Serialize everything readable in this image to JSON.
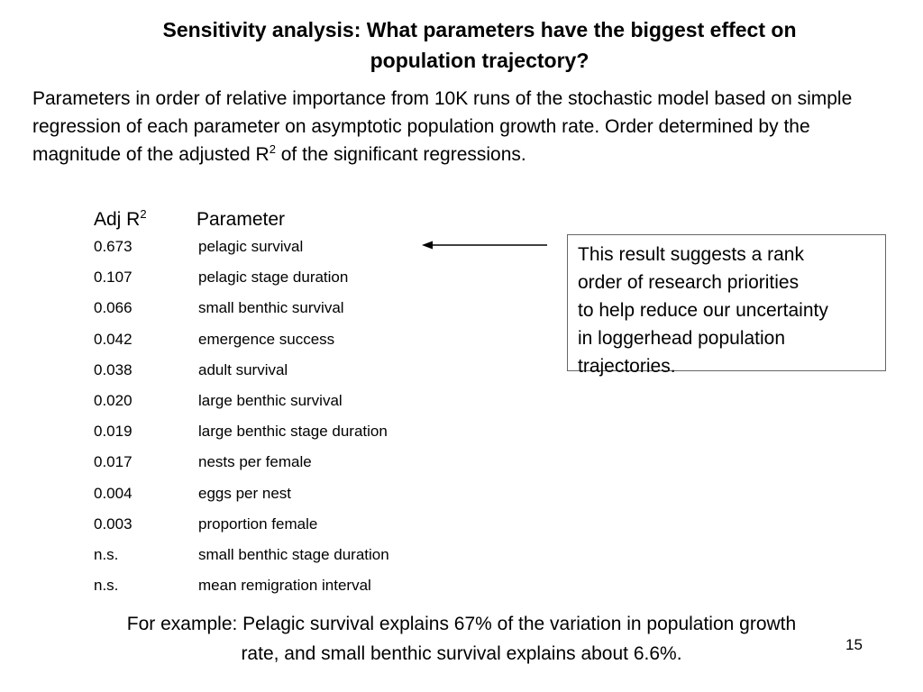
{
  "title": {
    "line1": "Sensitivity analysis: What parameters have the biggest effect on",
    "line2": "population trajectory?"
  },
  "intro": {
    "text_before_sup": "Parameters in order of relative importance from 10K runs of the stochastic model based on simple regression of each parameter on asymptotic population growth rate. Order determined by the magnitude of the adjusted R",
    "sup": "2",
    "text_after_sup": " of the significant regressions."
  },
  "table": {
    "header_adj": "Adj R",
    "header_sup": "2",
    "header_param": "Parameter",
    "rows": [
      {
        "r2": "0.673",
        "param": "pelagic survival"
      },
      {
        "r2": "0.107",
        "param": "pelagic stage duration"
      },
      {
        "r2": "0.066",
        "param": "small benthic survival"
      },
      {
        "r2": "0.042",
        "param": "emergence success"
      },
      {
        "r2": "0.038",
        "param": "adult survival"
      },
      {
        "r2": "0.020",
        "param": "large benthic survival"
      },
      {
        "r2": "0.019",
        "param": "large benthic stage duration"
      },
      {
        "r2": "0.017",
        "param": "nests per female"
      },
      {
        "r2": "0.004",
        "param": "eggs per nest"
      },
      {
        "r2": "0.003",
        "param": "proportion female"
      },
      {
        "r2": "n.s.",
        "param": "small benthic stage duration"
      },
      {
        "r2": "n.s.",
        "param": "mean remigration interval"
      }
    ]
  },
  "note": {
    "lines": [
      "This result suggests a rank",
      "order of research priorities",
      "to help reduce our uncertainty",
      "in loggerhead population",
      "trajectories."
    ]
  },
  "example": {
    "line1": "For example: Pelagic survival explains 67% of  the variation in population growth",
    "line2": "rate, and small benthic survival explains about 6.6%."
  },
  "slide_number": "15"
}
